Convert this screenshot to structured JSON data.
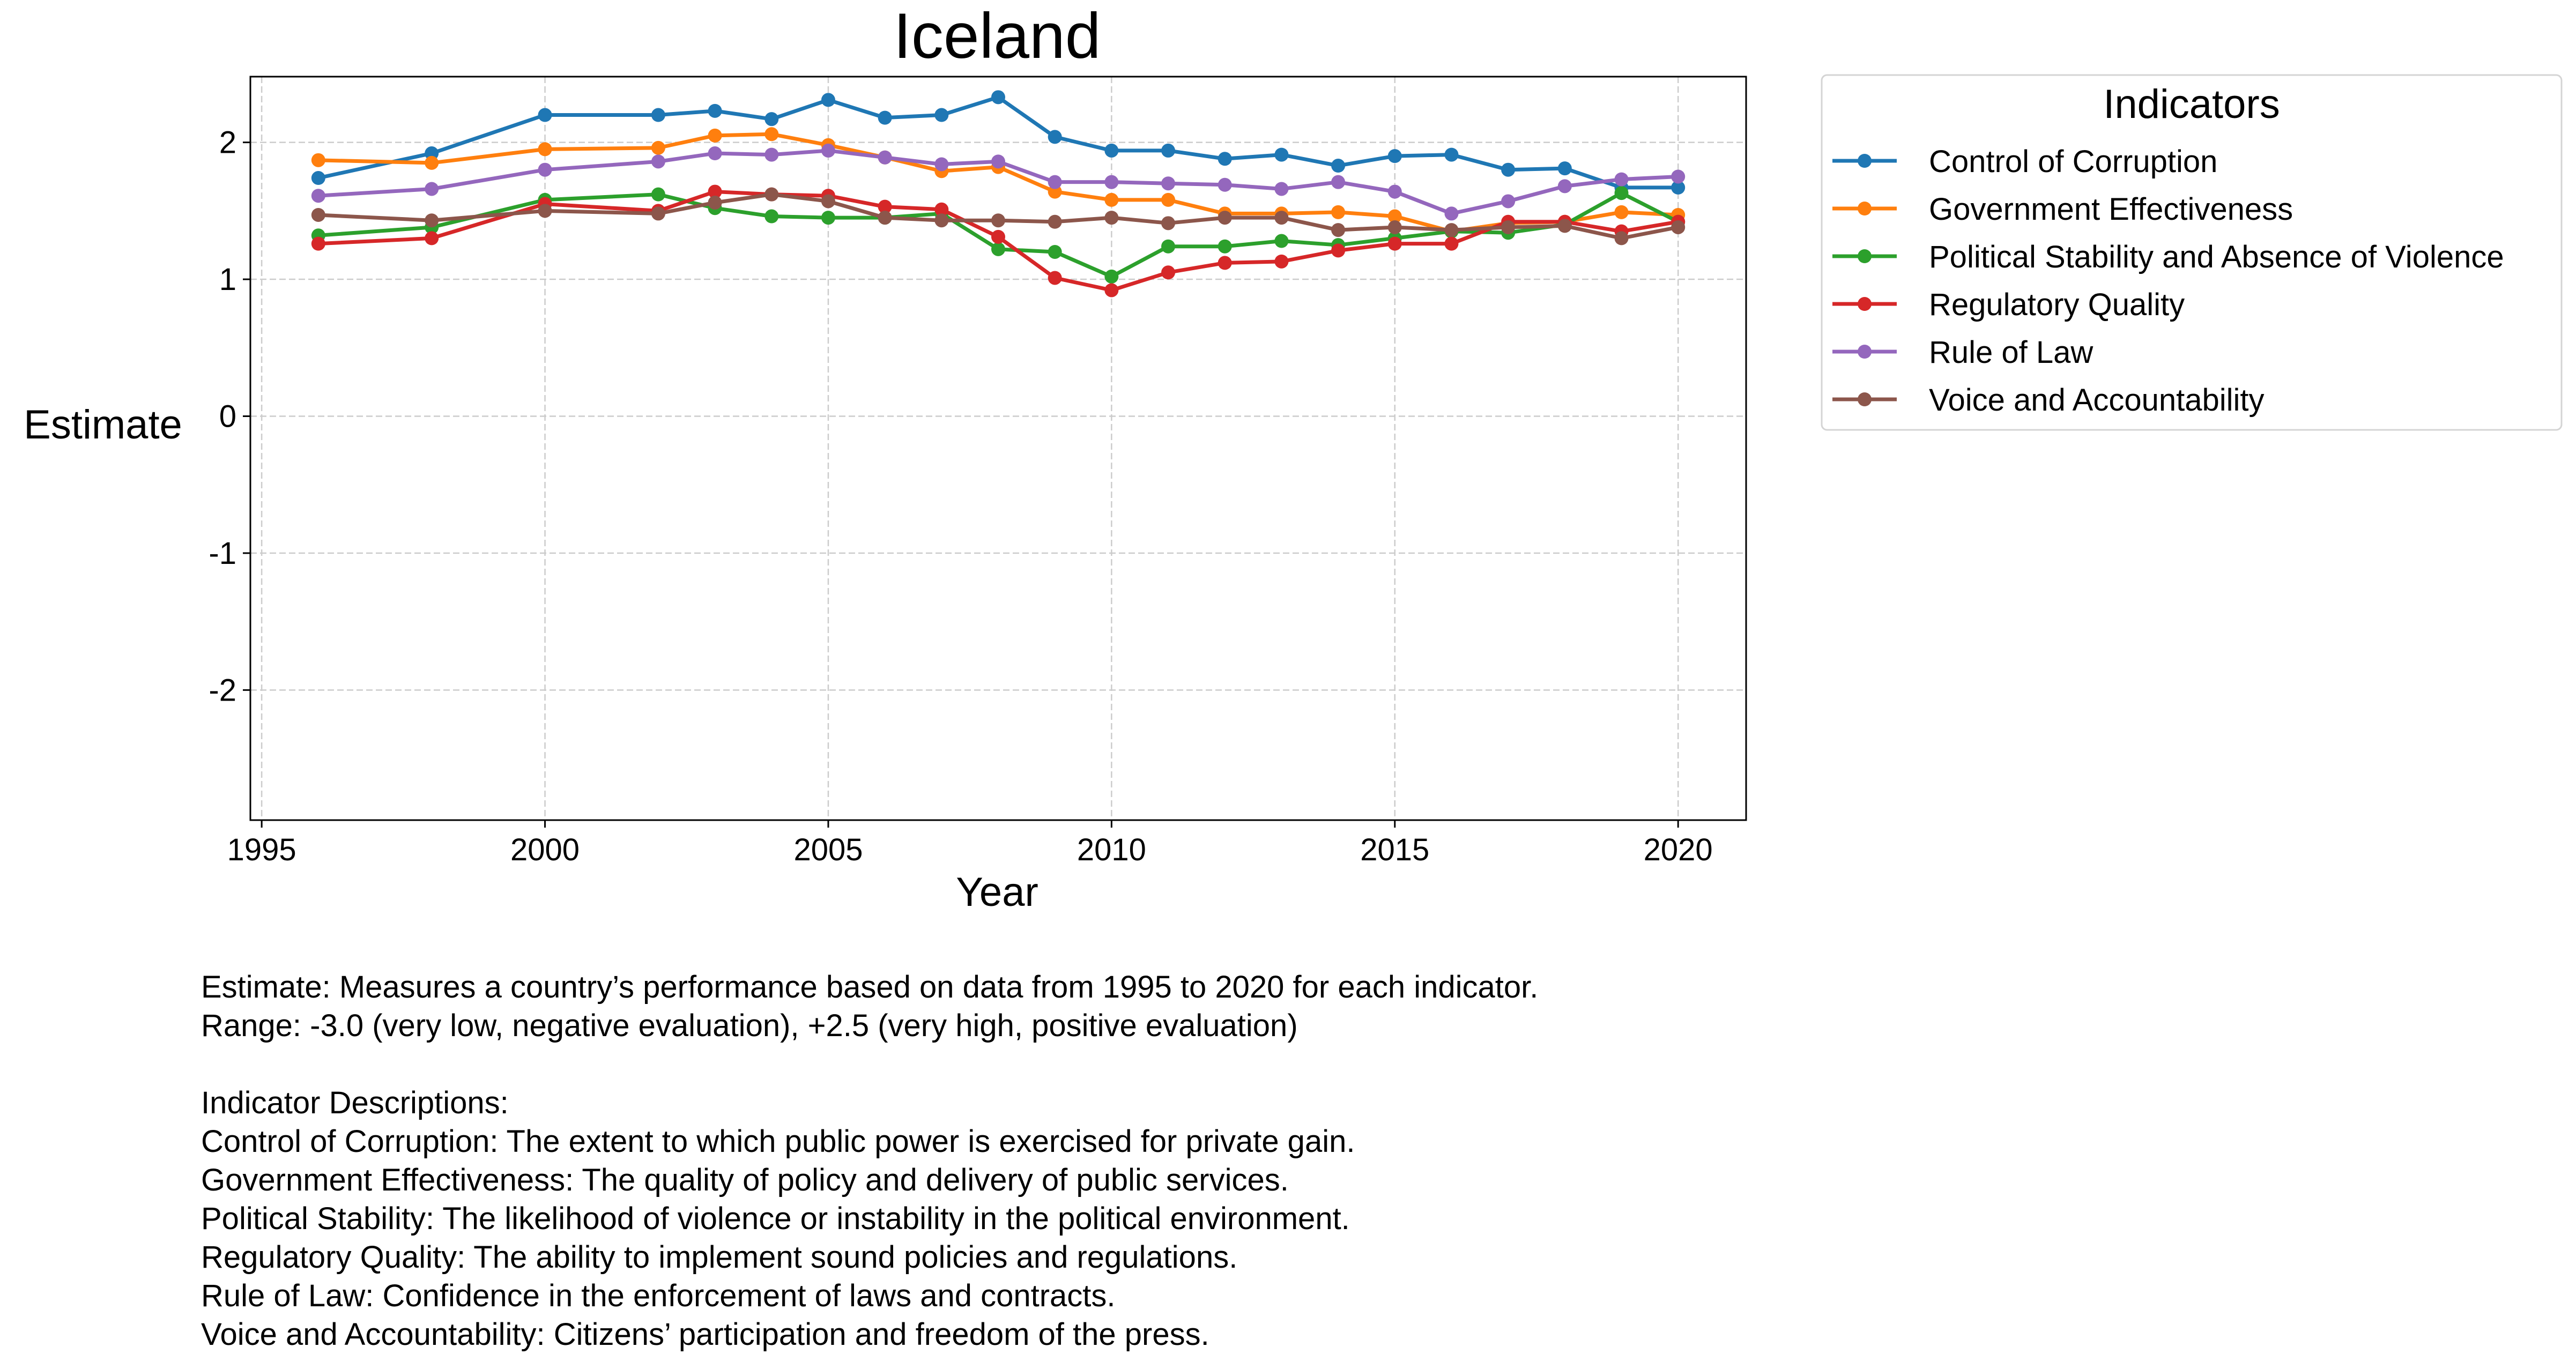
{
  "chart_data": {
    "type": "line",
    "title": "Iceland",
    "xlabel": "Year",
    "ylabel": "Estimate",
    "xlim": [
      1994.8,
      2021.2
    ],
    "ylim": [
      -2.95,
      2.48
    ],
    "xticks": [
      "1995",
      "2000",
      "2005",
      "2010",
      "2015",
      "2020"
    ],
    "yticks": [
      "-2",
      "-1",
      "0",
      "1",
      "2"
    ],
    "grid": true,
    "legend": {
      "title": "Indicators",
      "placement": "outside-top-right"
    },
    "x": [
      1996,
      1998,
      2000,
      2002,
      2003,
      2004,
      2005,
      2006,
      2007,
      2008,
      2009,
      2010,
      2011,
      2012,
      2013,
      2014,
      2015,
      2016,
      2017,
      2018,
      2019,
      2020
    ],
    "series": [
      {
        "name": "Control of Corruption",
        "color": "#1f77b4",
        "values": [
          1.74,
          1.92,
          2.2,
          2.2,
          2.23,
          2.17,
          2.31,
          2.18,
          2.2,
          2.33,
          2.04,
          1.94,
          1.94,
          1.88,
          1.91,
          1.83,
          1.9,
          1.91,
          1.8,
          1.81,
          1.67,
          1.67
        ]
      },
      {
        "name": "Government Effectiveness",
        "color": "#ff7f0e",
        "values": [
          1.87,
          1.85,
          1.95,
          1.96,
          2.05,
          2.06,
          1.98,
          1.89,
          1.79,
          1.82,
          1.64,
          1.58,
          1.58,
          1.48,
          1.48,
          1.49,
          1.46,
          1.35,
          1.41,
          1.42,
          1.49,
          1.47
        ]
      },
      {
        "name": "Political Stability and Absence of Violence",
        "color": "#2ca02c",
        "values": [
          1.32,
          1.38,
          1.58,
          1.62,
          1.52,
          1.46,
          1.45,
          1.45,
          1.48,
          1.22,
          1.2,
          1.02,
          1.24,
          1.24,
          1.28,
          1.25,
          1.3,
          1.35,
          1.34,
          1.4,
          1.63,
          1.42
        ]
      },
      {
        "name": "Regulatory Quality",
        "color": "#d62728",
        "values": [
          1.26,
          1.3,
          1.55,
          1.5,
          1.64,
          1.62,
          1.61,
          1.53,
          1.51,
          1.31,
          1.01,
          0.92,
          1.05,
          1.12,
          1.13,
          1.21,
          1.26,
          1.26,
          1.42,
          1.42,
          1.35,
          1.42
        ]
      },
      {
        "name": "Rule of Law",
        "color": "#9467bd",
        "values": [
          1.61,
          1.66,
          1.8,
          1.86,
          1.92,
          1.91,
          1.94,
          1.89,
          1.84,
          1.86,
          1.71,
          1.71,
          1.7,
          1.69,
          1.66,
          1.71,
          1.64,
          1.48,
          1.57,
          1.68,
          1.73,
          1.75
        ]
      },
      {
        "name": "Voice and Accountability",
        "color": "#8c564b",
        "values": [
          1.47,
          1.43,
          1.5,
          1.48,
          1.56,
          1.62,
          1.57,
          1.45,
          1.43,
          1.43,
          1.42,
          1.45,
          1.41,
          1.45,
          1.45,
          1.36,
          1.38,
          1.36,
          1.38,
          1.39,
          1.3,
          1.38
        ]
      }
    ]
  },
  "notes": {
    "line1": "Estimate: Measures a country’s performance based on data from 1995 to 2020 for each indicator.",
    "line2": "Range: -3.0 (very low, negative evaluation), +2.5 (very high, positive evaluation)",
    "heading": "Indicator Descriptions:",
    "items": [
      "Control of Corruption: The extent to which public power is exercised for private gain.",
      "Government Effectiveness: The quality of policy and delivery of public services.",
      "Political Stability: The likelihood of violence or instability in the political environment.",
      "Regulatory Quality: The ability to implement sound policies and regulations.",
      "Rule of Law: Confidence in the enforcement of laws and contracts.",
      "Voice and Accountability: Citizens’ participation and freedom of the press."
    ]
  }
}
